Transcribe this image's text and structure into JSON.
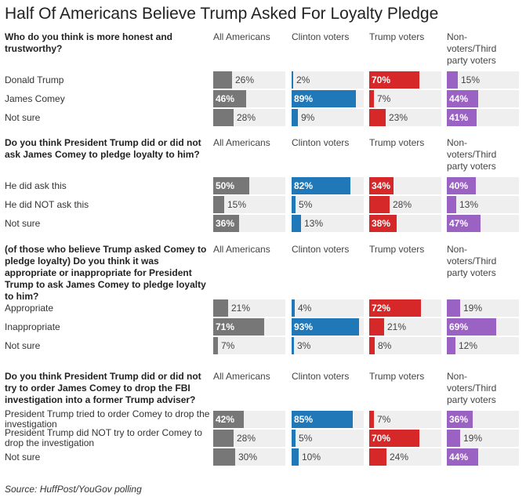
{
  "title": "Half Of Americans Believe Trump Asked For Loyalty Pledge",
  "source": "Source: HuffPost/YouGov polling",
  "colors": {
    "All Americans": "#777777",
    "Clinton voters": "#2178b8",
    "Trump voters": "#d62828",
    "Non-voters/Third party voters": "#9a63c3",
    "track": "#efefef"
  },
  "chart_data": {
    "type": "bar",
    "title": "Half Of Americans Believe Trump Asked For Loyalty Pledge",
    "unit": "%",
    "xlim": [
      0,
      100
    ],
    "columns": [
      "All Americans",
      "Clinton voters",
      "Trump voters",
      "Non-voters/Third party voters"
    ],
    "questions": [
      {
        "question": "Who do you think is more honest and trustworthy?",
        "rows": [
          {
            "label": "Donald Trump",
            "values": [
              26,
              2,
              70,
              15
            ]
          },
          {
            "label": "James Comey",
            "values": [
              46,
              89,
              7,
              44
            ]
          },
          {
            "label": "Not sure",
            "values": [
              28,
              9,
              23,
              41
            ]
          }
        ]
      },
      {
        "question": "Do you think President Trump did or did not ask James Comey to pledge loyalty to him?",
        "rows": [
          {
            "label": "He did ask this",
            "values": [
              50,
              82,
              34,
              40
            ]
          },
          {
            "label": "He did NOT ask this",
            "values": [
              15,
              5,
              28,
              13
            ]
          },
          {
            "label": "Not sure",
            "values": [
              36,
              13,
              38,
              47
            ]
          }
        ]
      },
      {
        "question": "(of those who believe Trump asked Comey to pledge loyalty) Do you think it was appropriate or inappropriate for President Trump to ask James Comey to pledge loyalty to him?",
        "rows": [
          {
            "label": "Appropriate",
            "values": [
              21,
              4,
              72,
              19
            ]
          },
          {
            "label": "Inappropriate",
            "values": [
              71,
              93,
              21,
              69
            ]
          },
          {
            "label": "Not sure",
            "values": [
              7,
              3,
              8,
              12
            ]
          }
        ]
      },
      {
        "question": "Do you think President Trump did or did not try to order James Comey to drop the FBI investigation into a former Trump adviser?",
        "rows": [
          {
            "label": "President Trump tried to order Comey to drop the investigation",
            "values": [
              42,
              85,
              7,
              36
            ]
          },
          {
            "label": "President Trump did NOT try to order Comey to drop the investigation",
            "values": [
              28,
              5,
              70,
              19
            ]
          },
          {
            "label": "Not sure",
            "values": [
              30,
              10,
              24,
              44
            ]
          }
        ]
      }
    ]
  }
}
